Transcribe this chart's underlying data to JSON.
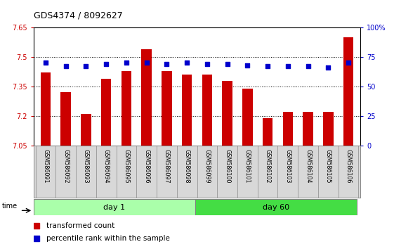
{
  "title": "GDS4374 / 8092627",
  "samples": [
    "GSM586091",
    "GSM586092",
    "GSM586093",
    "GSM586094",
    "GSM586095",
    "GSM586096",
    "GSM586097",
    "GSM586098",
    "GSM586099",
    "GSM586100",
    "GSM586101",
    "GSM586102",
    "GSM586103",
    "GSM586104",
    "GSM586105",
    "GSM586106"
  ],
  "transformed_counts": [
    7.42,
    7.32,
    7.21,
    7.39,
    7.43,
    7.54,
    7.43,
    7.41,
    7.41,
    7.38,
    7.34,
    7.19,
    7.22,
    7.22,
    7.22,
    7.6
  ],
  "percentile_ranks": [
    70,
    67,
    67,
    69,
    70,
    70,
    69,
    70,
    69,
    69,
    68,
    67,
    67,
    67,
    66,
    70
  ],
  "ymin": 7.05,
  "ymax": 7.65,
  "yticks": [
    7.05,
    7.2,
    7.35,
    7.5,
    7.65
  ],
  "ytick_labels": [
    "7.05",
    "7.2",
    "7.35",
    "7.5",
    "7.65"
  ],
  "y2min": 0,
  "y2max": 100,
  "y2ticks": [
    0,
    25,
    50,
    75,
    100
  ],
  "y2tick_labels": [
    "0",
    "25",
    "50",
    "75",
    "100%"
  ],
  "bar_color": "#cc0000",
  "dot_color": "#0000cc",
  "day1_color": "#aaffaa",
  "day60_color": "#44dd44",
  "day1_samples": 8,
  "day60_samples": 8,
  "day1_label": "day 1",
  "day60_label": "day 60",
  "time_label": "time",
  "legend_bar_label": "transformed count",
  "legend_dot_label": "percentile rank within the sample",
  "bar_width": 0.5,
  "dot_size": 18,
  "axis_label_color_left": "#cc0000",
  "axis_label_color_right": "#0000cc",
  "tick_label_fontsize": 7,
  "title_fontsize": 9,
  "sample_box_color": "#d8d8d8",
  "sample_box_border": "#888888"
}
